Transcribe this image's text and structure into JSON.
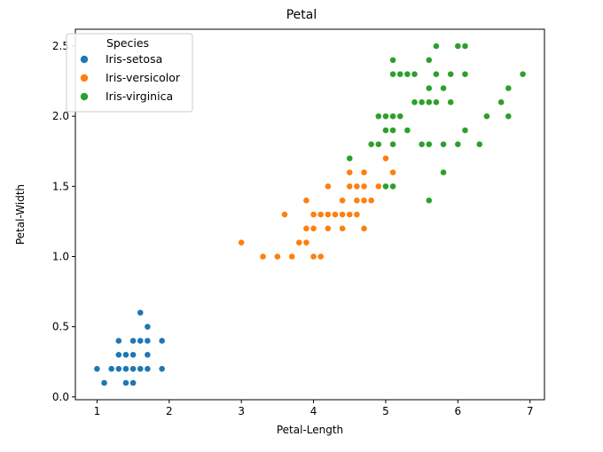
{
  "chart_data": {
    "type": "scatter",
    "title": "Petal",
    "xlabel": "Petal-Length",
    "ylabel": "Petal-Width",
    "xlim": [
      0.7,
      7.2
    ],
    "ylim": [
      -0.02,
      2.62
    ],
    "xticks": [
      1,
      2,
      3,
      4,
      5,
      6,
      7
    ],
    "yticks": [
      0.0,
      0.5,
      1.0,
      1.5,
      2.0,
      2.5
    ],
    "grid": false,
    "legend": {
      "title": "Species",
      "placement": "upper-left"
    },
    "series": [
      {
        "name": "Iris-setosa",
        "color": "#1f77b4",
        "points": [
          [
            1.4,
            0.2
          ],
          [
            1.4,
            0.2
          ],
          [
            1.3,
            0.2
          ],
          [
            1.5,
            0.2
          ],
          [
            1.4,
            0.2
          ],
          [
            1.7,
            0.4
          ],
          [
            1.4,
            0.3
          ],
          [
            1.5,
            0.2
          ],
          [
            1.4,
            0.2
          ],
          [
            1.5,
            0.1
          ],
          [
            1.5,
            0.2
          ],
          [
            1.6,
            0.2
          ],
          [
            1.4,
            0.1
          ],
          [
            1.1,
            0.1
          ],
          [
            1.2,
            0.2
          ],
          [
            1.5,
            0.4
          ],
          [
            1.3,
            0.4
          ],
          [
            1.4,
            0.3
          ],
          [
            1.7,
            0.3
          ],
          [
            1.5,
            0.3
          ],
          [
            1.7,
            0.2
          ],
          [
            1.5,
            0.4
          ],
          [
            1.0,
            0.2
          ],
          [
            1.7,
            0.5
          ],
          [
            1.9,
            0.2
          ],
          [
            1.6,
            0.2
          ],
          [
            1.6,
            0.4
          ],
          [
            1.5,
            0.2
          ],
          [
            1.4,
            0.2
          ],
          [
            1.6,
            0.2
          ],
          [
            1.6,
            0.2
          ],
          [
            1.5,
            0.4
          ],
          [
            1.5,
            0.1
          ],
          [
            1.4,
            0.2
          ],
          [
            1.5,
            0.1
          ],
          [
            1.2,
            0.2
          ],
          [
            1.3,
            0.2
          ],
          [
            1.5,
            0.1
          ],
          [
            1.3,
            0.2
          ],
          [
            1.5,
            0.2
          ],
          [
            1.3,
            0.3
          ],
          [
            1.3,
            0.3
          ],
          [
            1.3,
            0.2
          ],
          [
            1.6,
            0.6
          ],
          [
            1.9,
            0.4
          ],
          [
            1.4,
            0.3
          ],
          [
            1.6,
            0.2
          ],
          [
            1.4,
            0.2
          ],
          [
            1.5,
            0.2
          ],
          [
            1.4,
            0.2
          ]
        ]
      },
      {
        "name": "Iris-versicolor",
        "color": "#ff7f0e",
        "points": [
          [
            4.7,
            1.4
          ],
          [
            4.5,
            1.5
          ],
          [
            4.9,
            1.5
          ],
          [
            4.0,
            1.3
          ],
          [
            4.6,
            1.5
          ],
          [
            4.5,
            1.3
          ],
          [
            4.7,
            1.6
          ],
          [
            3.3,
            1.0
          ],
          [
            4.6,
            1.3
          ],
          [
            3.9,
            1.4
          ],
          [
            3.5,
            1.0
          ],
          [
            4.2,
            1.5
          ],
          [
            4.0,
            1.0
          ],
          [
            4.7,
            1.4
          ],
          [
            3.6,
            1.3
          ],
          [
            4.4,
            1.4
          ],
          [
            4.5,
            1.5
          ],
          [
            4.1,
            1.0
          ],
          [
            4.5,
            1.5
          ],
          [
            3.9,
            1.1
          ],
          [
            4.8,
            1.8
          ],
          [
            4.0,
            1.3
          ],
          [
            4.9,
            1.5
          ],
          [
            4.7,
            1.2
          ],
          [
            4.3,
            1.3
          ],
          [
            4.4,
            1.4
          ],
          [
            4.8,
            1.4
          ],
          [
            5.0,
            1.7
          ],
          [
            4.5,
            1.5
          ],
          [
            3.5,
            1.0
          ],
          [
            3.8,
            1.1
          ],
          [
            3.7,
            1.0
          ],
          [
            3.9,
            1.2
          ],
          [
            5.1,
            1.6
          ],
          [
            4.5,
            1.5
          ],
          [
            4.5,
            1.6
          ],
          [
            4.7,
            1.5
          ],
          [
            4.4,
            1.3
          ],
          [
            4.1,
            1.3
          ],
          [
            4.0,
            1.3
          ],
          [
            4.4,
            1.2
          ],
          [
            4.6,
            1.4
          ],
          [
            4.0,
            1.2
          ],
          [
            3.3,
            1.0
          ],
          [
            4.2,
            1.3
          ],
          [
            4.2,
            1.2
          ],
          [
            4.2,
            1.3
          ],
          [
            4.3,
            1.3
          ],
          [
            3.0,
            1.1
          ],
          [
            4.1,
            1.3
          ]
        ]
      },
      {
        "name": "Iris-virginica",
        "color": "#2ca02c",
        "points": [
          [
            6.0,
            2.5
          ],
          [
            5.1,
            1.9
          ],
          [
            5.9,
            2.1
          ],
          [
            5.6,
            1.8
          ],
          [
            5.8,
            2.2
          ],
          [
            6.6,
            2.1
          ],
          [
            4.5,
            1.7
          ],
          [
            6.3,
            1.8
          ],
          [
            5.8,
            1.8
          ],
          [
            6.1,
            2.5
          ],
          [
            5.1,
            2.0
          ],
          [
            5.3,
            1.9
          ],
          [
            5.5,
            2.1
          ],
          [
            5.0,
            2.0
          ],
          [
            5.1,
            2.4
          ],
          [
            5.3,
            2.3
          ],
          [
            5.5,
            1.8
          ],
          [
            6.7,
            2.2
          ],
          [
            6.9,
            2.3
          ],
          [
            5.0,
            1.5
          ],
          [
            5.7,
            2.3
          ],
          [
            4.9,
            2.0
          ],
          [
            6.7,
            2.0
          ],
          [
            4.9,
            1.8
          ],
          [
            5.7,
            2.1
          ],
          [
            6.0,
            1.8
          ],
          [
            4.8,
            1.8
          ],
          [
            4.9,
            1.8
          ],
          [
            5.6,
            2.1
          ],
          [
            5.8,
            1.6
          ],
          [
            6.1,
            1.9
          ],
          [
            6.4,
            2.0
          ],
          [
            5.6,
            2.2
          ],
          [
            5.1,
            1.5
          ],
          [
            5.6,
            1.4
          ],
          [
            6.1,
            2.3
          ],
          [
            5.6,
            2.4
          ],
          [
            5.5,
            1.8
          ],
          [
            4.8,
            1.8
          ],
          [
            5.4,
            2.1
          ],
          [
            5.6,
            2.4
          ],
          [
            5.1,
            2.3
          ],
          [
            5.1,
            1.9
          ],
          [
            5.9,
            2.3
          ],
          [
            5.7,
            2.5
          ],
          [
            5.2,
            2.3
          ],
          [
            5.0,
            1.9
          ],
          [
            5.2,
            2.0
          ],
          [
            5.4,
            2.3
          ],
          [
            5.1,
            1.8
          ]
        ]
      }
    ]
  }
}
